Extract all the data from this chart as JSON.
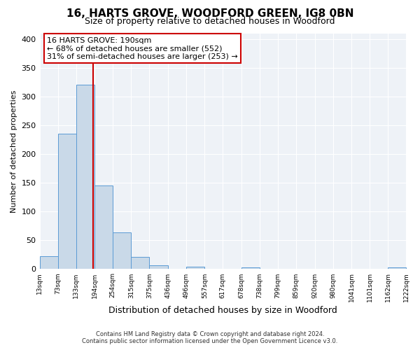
{
  "title": "16, HARTS GROVE, WOODFORD GREEN, IG8 0BN",
  "subtitle": "Size of property relative to detached houses in Woodford",
  "xlabel": "Distribution of detached houses by size in Woodford",
  "ylabel": "Number of detached properties",
  "bin_edges": [
    13,
    73,
    133,
    194,
    254,
    315,
    375,
    436,
    496,
    557,
    617,
    678,
    738,
    799,
    859,
    920,
    980,
    1041,
    1101,
    1162,
    1222
  ],
  "bin_heights": [
    22,
    236,
    320,
    145,
    64,
    21,
    7,
    0,
    4,
    0,
    0,
    3,
    0,
    0,
    0,
    0,
    0,
    0,
    0,
    3
  ],
  "bar_color": "#c9d9e8",
  "bar_edge_color": "#5b9bd5",
  "vline_x": 190,
  "vline_color": "#cc0000",
  "annotation_line1": "16 HARTS GROVE: 190sqm",
  "annotation_line2": "← 68% of detached houses are smaller (552)",
  "annotation_line3": "31% of semi-detached houses are larger (253) →",
  "annotation_box_color": "#ffffff",
  "annotation_box_edge_color": "#cc0000",
  "ylim": [
    0,
    410
  ],
  "footer_line1": "Contains HM Land Registry data © Crown copyright and database right 2024.",
  "footer_line2": "Contains public sector information licensed under the Open Government Licence v3.0.",
  "background_color": "#eef2f7",
  "tick_labels": [
    "13sqm",
    "73sqm",
    "133sqm",
    "194sqm",
    "254sqm",
    "315sqm",
    "375sqm",
    "436sqm",
    "496sqm",
    "557sqm",
    "617sqm",
    "678sqm",
    "738sqm",
    "799sqm",
    "859sqm",
    "920sqm",
    "980sqm",
    "1041sqm",
    "1101sqm",
    "1162sqm",
    "1222sqm"
  ],
  "title_fontsize": 11,
  "subtitle_fontsize": 9,
  "ylabel_fontsize": 8,
  "xlabel_fontsize": 9
}
